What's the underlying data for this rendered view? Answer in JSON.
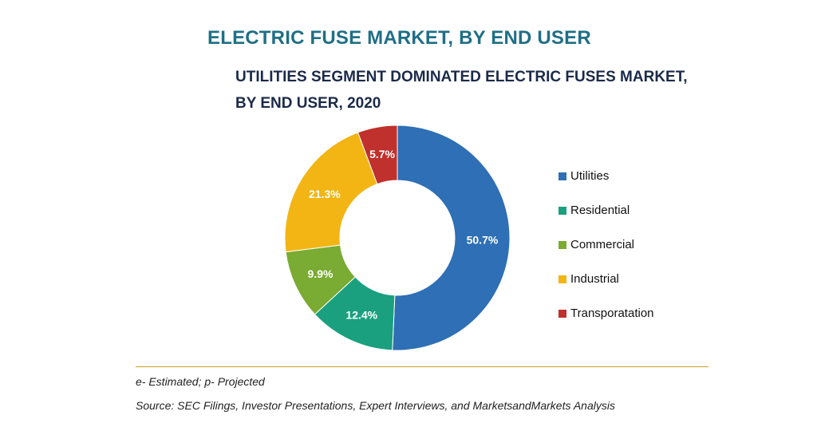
{
  "header": {
    "title": "ELECTRIC FUSE MARKET, BY END USER",
    "subtitle_line1": "UTILITIES SEGMENT DOMINATED ELECTRIC FUSES MARKET,",
    "subtitle_line2": "BY END USER, 2020"
  },
  "chart_data": {
    "type": "pie",
    "subtype": "donut",
    "title": "UTILITIES SEGMENT DOMINATED ELECTRIC FUSES MARKET, BY END USER, 2020",
    "categories": [
      "Utilities",
      "Residential",
      "Commercial",
      "Industrial",
      "Transporatation"
    ],
    "values": [
      50.7,
      12.4,
      9.9,
      21.3,
      5.7
    ],
    "labels": [
      "50.7%",
      "12.4%",
      "9.9%",
      "21.3%",
      "5.7%"
    ],
    "colors": [
      "#2e6fb5",
      "#1aa07f",
      "#7aab32",
      "#f2b514",
      "#c0302c"
    ],
    "legend_position": "right"
  },
  "footer": {
    "note": "e- Estimated; p- Projected",
    "source": "Source: SEC Filings, Investor Presentations, Expert Interviews, and MarketsandMarkets Analysis"
  }
}
